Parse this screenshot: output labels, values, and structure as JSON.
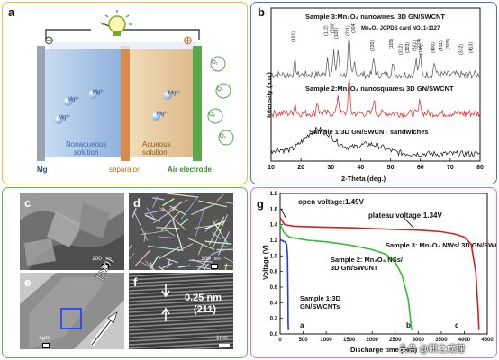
{
  "panel_a": {
    "label": "a",
    "nonaqueous": [
      "Nonaqueous",
      "solution"
    ],
    "aqueous": [
      "Aqueous",
      "solution"
    ],
    "mg_label": "Mg",
    "separator_label": "separator",
    "air_electrode_label": "Air electrode",
    "ion": "Mg²⁺",
    "o2": "O₂",
    "minus": "⊖",
    "plus": "⊕",
    "colors": {
      "nonaqueous": "#9dc0e6",
      "aqueous": "#e9cda3",
      "separator": "#d98c4a",
      "electrode": "#5aa84a",
      "mg": "#9aa3b0"
    }
  },
  "panel_b": {
    "label": "b",
    "jcpds": "Mn₃O₄ JCPDS card NO. 1-1127",
    "jcpds_peaks": [
      "(101)",
      "(112)",
      "(200)",
      "(103)",
      "(211)",
      "(004)",
      "(220)",
      "(105)",
      "(312)",
      "(303)",
      "(321)",
      "(224)",
      "(116)",
      "(400)",
      "(411)",
      "(305)",
      "(332)",
      "(413)"
    ],
    "chart_data": {
      "type": "line",
      "xlabel": "2-Theta (deg.)",
      "ylabel": "Intensity (a.u.)",
      "xlim": [
        10,
        80
      ],
      "xticks": [
        10,
        20,
        30,
        40,
        50,
        60,
        70,
        80
      ],
      "grid": false,
      "series": [
        {
          "name": "Sample 3:Mn₃O₄ nanowires/ 3D GN/SWCNT",
          "roman": "III",
          "color": "#555555",
          "peaks": [
            [
              18.0,
              0.35
            ],
            [
              28.9,
              0.5
            ],
            [
              31.0,
              0.6
            ],
            [
              32.4,
              0.7
            ],
            [
              36.1,
              1.0
            ],
            [
              38.0,
              0.35
            ],
            [
              44.4,
              0.45
            ],
            [
              50.7,
              0.3
            ],
            [
              58.5,
              0.45
            ],
            [
              59.9,
              0.55
            ],
            [
              64.7,
              0.35
            ]
          ]
        },
        {
          "name": "Sample 2:Mn₃O₄ nanosquares/ 3D GN/SWCNT",
          "roman": "II",
          "color": "#e02020",
          "peaks": [
            [
              18.0,
              0.3
            ],
            [
              25.5,
              0.35
            ],
            [
              32.4,
              0.55
            ],
            [
              36.1,
              1.0
            ],
            [
              44.4,
              0.4
            ],
            [
              59.9,
              0.4
            ]
          ]
        },
        {
          "name": "Sample 1:3D GN/SWCNT sandwiches",
          "roman": "I",
          "color": "#111111",
          "peaks": [
            [
              26.0,
              0.9
            ],
            [
              43.0,
              0.35
            ]
          ]
        }
      ]
    }
  },
  "panel_c": {
    "label": "c",
    "scale": "100 nm"
  },
  "panel_d": {
    "label": "d",
    "scale": "100 nm"
  },
  "panel_e": {
    "label": "e",
    "scale": "1μm",
    "direction": "[010]"
  },
  "panel_f": {
    "label": "f",
    "scale": "1nm",
    "spacing": "0.25 nm",
    "plane": "(211)"
  },
  "panel_g": {
    "label": "g",
    "open_voltage": "open voltage:1.49V",
    "plateau_voltage": "plateau voltage:1.34V",
    "watermark": "头条 @研之成理",
    "chart_data": {
      "type": "line",
      "xlabel": "Discharge time (min)",
      "ylabel": "Voltage (V)",
      "xlim": [
        0,
        4500
      ],
      "ylim": [
        0,
        1.8
      ],
      "xticks": [
        0,
        500,
        1000,
        1500,
        2000,
        2500,
        3000,
        3500,
        4000,
        4500
      ],
      "yticks": [
        0.0,
        0.2,
        0.4,
        0.6,
        0.8,
        1.0,
        1.2,
        1.4,
        1.6,
        1.8
      ],
      "series": [
        {
          "name": "Sample 1:3D GN/SWCNTs",
          "letter": "a",
          "color": "#2040d8",
          "x": [
            0,
            20,
            60,
            100,
            140,
            160,
            170,
            175,
            180
          ],
          "y": [
            1.22,
            1.2,
            1.19,
            1.18,
            1.15,
            1.0,
            0.5,
            0.15,
            0.05
          ]
        },
        {
          "name": "Sample 2: Mn₃O₄ NSs/ 3D GN/SWCNT",
          "letter": "b",
          "color": "#30c030",
          "x": [
            0,
            80,
            200,
            400,
            600,
            1000,
            1500,
            2000,
            2300,
            2500,
            2650,
            2780,
            2830,
            2850,
            2860
          ],
          "y": [
            1.4,
            1.3,
            1.24,
            1.22,
            1.2,
            1.18,
            1.14,
            1.08,
            1.02,
            0.92,
            0.75,
            0.45,
            0.2,
            0.08,
            0.05
          ]
        },
        {
          "name": "Sample 3: Mn₃O₄ NWs/ 3D GN/SWCNT",
          "letter": "c",
          "color": "#d02020",
          "x": [
            0,
            100,
            300,
            800,
            1500,
            2000,
            2500,
            3000,
            3500,
            3800,
            4000,
            4150,
            4250,
            4300,
            4320
          ],
          "y": [
            1.49,
            1.4,
            1.38,
            1.37,
            1.36,
            1.35,
            1.34,
            1.33,
            1.31,
            1.28,
            1.24,
            1.15,
            0.8,
            0.3,
            0.05
          ]
        }
      ]
    }
  }
}
